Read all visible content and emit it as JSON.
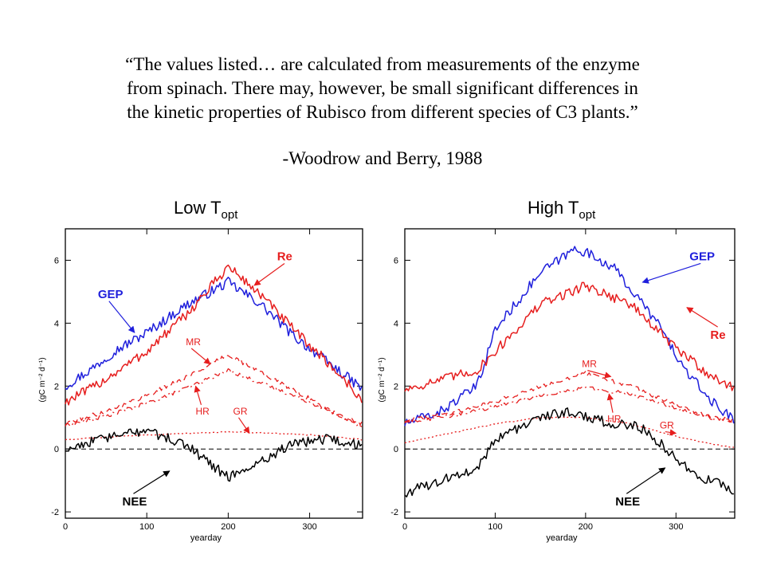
{
  "quote": {
    "lines": [
      "“The values listed… are calculated from measurements of the enzyme",
      "from spinach.  There may, however, be small significant differences in",
      "the kinetic properties of Rubisco from different species of C3 plants.”"
    ],
    "attribution": "-Woodrow and Berry, 1988"
  },
  "colors": {
    "gep": "#1f1fdc",
    "re": "#e61e1e",
    "nee": "#000000"
  },
  "chart_data": [
    {
      "type": "line",
      "title_main": "Low T",
      "title_sub": "opt",
      "xlabel": "yearday",
      "ylabel": "(gC m⁻² d⁻¹)",
      "xlim": [
        0,
        365
      ],
      "ylim": [
        -2.2,
        7.0
      ],
      "xticks": [
        0,
        100,
        200,
        300
      ],
      "yticks": [
        -2,
        0,
        2,
        4,
        6
      ],
      "reference_line": 0,
      "series": [
        {
          "name": "GEP",
          "color": "#1f1fdc",
          "style": "solid",
          "points": [
            [
              0,
              2.0
            ],
            [
              30,
              2.5
            ],
            [
              60,
              3.1
            ],
            [
              100,
              3.7
            ],
            [
              150,
              4.6
            ],
            [
              200,
              5.3
            ],
            [
              240,
              4.6
            ],
            [
              280,
              3.6
            ],
            [
              320,
              2.8
            ],
            [
              350,
              2.2
            ],
            [
              365,
              1.9
            ]
          ]
        },
        {
          "name": "Re",
          "color": "#e61e1e",
          "style": "solid",
          "points": [
            [
              0,
              1.5
            ],
            [
              30,
              1.9
            ],
            [
              60,
              2.4
            ],
            [
              100,
              3.1
            ],
            [
              150,
              4.3
            ],
            [
              200,
              5.8
            ],
            [
              240,
              4.9
            ],
            [
              280,
              3.8
            ],
            [
              320,
              2.8
            ],
            [
              350,
              2.0
            ],
            [
              365,
              1.5
            ]
          ]
        },
        {
          "name": "MR",
          "color": "#e61e1e",
          "style": "dashed",
          "points": [
            [
              0,
              0.8
            ],
            [
              50,
              1.2
            ],
            [
              100,
              1.7
            ],
            [
              150,
              2.3
            ],
            [
              200,
              3.0
            ],
            [
              250,
              2.3
            ],
            [
              300,
              1.6
            ],
            [
              340,
              1.0
            ],
            [
              365,
              0.8
            ]
          ]
        },
        {
          "name": "HR",
          "color": "#e61e1e",
          "style": "dashdot",
          "points": [
            [
              0,
              0.75
            ],
            [
              50,
              1.05
            ],
            [
              100,
              1.45
            ],
            [
              150,
              1.95
            ],
            [
              200,
              2.5
            ],
            [
              250,
              2.0
            ],
            [
              300,
              1.5
            ],
            [
              340,
              1.0
            ],
            [
              365,
              0.7
            ]
          ]
        },
        {
          "name": "GR",
          "color": "#e61e1e",
          "style": "dotted",
          "points": [
            [
              0,
              0.3
            ],
            [
              100,
              0.45
            ],
            [
              200,
              0.55
            ],
            [
              300,
              0.45
            ],
            [
              365,
              0.3
            ]
          ]
        },
        {
          "name": "NEE",
          "color": "#000000",
          "style": "solid",
          "points": [
            [
              0,
              0.0
            ],
            [
              40,
              0.3
            ],
            [
              100,
              0.6
            ],
            [
              150,
              0.1
            ],
            [
              200,
              -0.9
            ],
            [
              240,
              -0.4
            ],
            [
              280,
              0.2
            ],
            [
              320,
              0.3
            ],
            [
              365,
              0.1
            ]
          ]
        }
      ],
      "annotations": [
        {
          "text": "Re",
          "color": "#e61e1e",
          "bold": true,
          "size": 15,
          "at": [
            260,
            6.0
          ],
          "arrow_to": [
            232,
            5.2
          ]
        },
        {
          "text": "GEP",
          "color": "#1f1fdc",
          "bold": true,
          "size": 15,
          "at": [
            40,
            4.8
          ],
          "arrow_to": [
            85,
            3.7
          ]
        },
        {
          "text": "MR",
          "color": "#e61e1e",
          "bold": false,
          "size": 12,
          "at": [
            148,
            3.3
          ],
          "arrow_to": [
            178,
            2.7
          ]
        },
        {
          "text": "HR",
          "color": "#e61e1e",
          "bold": false,
          "size": 12,
          "at": [
            160,
            1.1
          ],
          "arrow_to": [
            160,
            2.0
          ]
        },
        {
          "text": "GR",
          "color": "#e61e1e",
          "bold": false,
          "size": 12,
          "at": [
            206,
            1.1
          ],
          "arrow_to": [
            226,
            0.5
          ]
        },
        {
          "text": "NEE",
          "color": "#000000",
          "bold": true,
          "size": 15,
          "at": [
            70,
            -1.8
          ],
          "arrow_to": [
            128,
            -0.7
          ]
        }
      ]
    },
    {
      "type": "line",
      "title_main": "High T",
      "title_sub": "opt",
      "xlabel": "yearday",
      "ylabel": "(gC m⁻² d⁻¹)",
      "xlim": [
        0,
        365
      ],
      "ylim": [
        -2.2,
        7.0
      ],
      "xticks": [
        0,
        100,
        200,
        300
      ],
      "yticks": [
        -2,
        0,
        2,
        4,
        6
      ],
      "reference_line": 0,
      "series": [
        {
          "name": "GEP",
          "color": "#1f1fdc",
          "style": "solid",
          "points": [
            [
              0,
              0.8
            ],
            [
              40,
              1.2
            ],
            [
              80,
              2.0
            ],
            [
              100,
              3.8
            ],
            [
              150,
              5.6
            ],
            [
              190,
              6.4
            ],
            [
              230,
              5.8
            ],
            [
              280,
              4.0
            ],
            [
              310,
              2.5
            ],
            [
              340,
              1.5
            ],
            [
              365,
              0.9
            ]
          ]
        },
        {
          "name": "Re",
          "color": "#e61e1e",
          "style": "solid",
          "points": [
            [
              0,
              1.9
            ],
            [
              40,
              2.2
            ],
            [
              80,
              2.5
            ],
            [
              100,
              3.1
            ],
            [
              150,
              4.6
            ],
            [
              200,
              5.2
            ],
            [
              250,
              4.6
            ],
            [
              300,
              3.2
            ],
            [
              340,
              2.3
            ],
            [
              365,
              1.9
            ]
          ]
        },
        {
          "name": "MR",
          "color": "#e61e1e",
          "style": "dashed",
          "points": [
            [
              0,
              0.9
            ],
            [
              50,
              1.15
            ],
            [
              100,
              1.5
            ],
            [
              150,
              2.0
            ],
            [
              200,
              2.4
            ],
            [
              250,
              2.0
            ],
            [
              300,
              1.4
            ],
            [
              340,
              1.0
            ],
            [
              365,
              0.9
            ]
          ]
        },
        {
          "name": "HR",
          "color": "#e61e1e",
          "style": "dashdot",
          "points": [
            [
              0,
              0.85
            ],
            [
              50,
              1.05
            ],
            [
              100,
              1.35
            ],
            [
              150,
              1.7
            ],
            [
              200,
              1.95
            ],
            [
              250,
              1.75
            ],
            [
              300,
              1.3
            ],
            [
              340,
              1.0
            ],
            [
              365,
              0.9
            ]
          ]
        },
        {
          "name": "GR",
          "color": "#e61e1e",
          "style": "dotted",
          "points": [
            [
              0,
              0.2
            ],
            [
              50,
              0.5
            ],
            [
              100,
              0.8
            ],
            [
              150,
              1.0
            ],
            [
              200,
              1.0
            ],
            [
              250,
              0.8
            ],
            [
              300,
              0.4
            ],
            [
              340,
              0.15
            ],
            [
              365,
              0.05
            ]
          ]
        },
        {
          "name": "NEE",
          "color": "#000000",
          "style": "solid",
          "points": [
            [
              0,
              -1.4
            ],
            [
              40,
              -1.0
            ],
            [
              80,
              -0.6
            ],
            [
              100,
              0.3
            ],
            [
              150,
              1.0
            ],
            [
              180,
              1.2
            ],
            [
              230,
              0.8
            ],
            [
              260,
              0.7
            ],
            [
              290,
              0.0
            ],
            [
              320,
              -0.8
            ],
            [
              365,
              -1.3
            ]
          ]
        }
      ],
      "annotations": [
        {
          "text": "GEP",
          "color": "#1f1fdc",
          "bold": true,
          "size": 15,
          "at": [
            315,
            6.0
          ],
          "arrow_to": [
            263,
            5.3
          ]
        },
        {
          "text": "Re",
          "color": "#e61e1e",
          "bold": true,
          "size": 15,
          "at": [
            338,
            3.5
          ],
          "arrow_to": [
            312,
            4.5
          ]
        },
        {
          "text": "MR",
          "color": "#e61e1e",
          "bold": false,
          "size": 12,
          "at": [
            196,
            2.6
          ],
          "arrow_to": [
            228,
            2.3
          ]
        },
        {
          "text": "HR",
          "color": "#e61e1e",
          "bold": false,
          "size": 12,
          "at": [
            224,
            0.85
          ],
          "arrow_to": [
            226,
            1.75
          ]
        },
        {
          "text": "GR",
          "color": "#e61e1e",
          "bold": false,
          "size": 12,
          "at": [
            282,
            0.65
          ],
          "arrow_to": [
            300,
            0.5
          ]
        },
        {
          "text": "NEE",
          "color": "#000000",
          "bold": true,
          "size": 15,
          "at": [
            233,
            -1.8
          ],
          "arrow_to": [
            288,
            -0.6
          ]
        }
      ]
    }
  ]
}
